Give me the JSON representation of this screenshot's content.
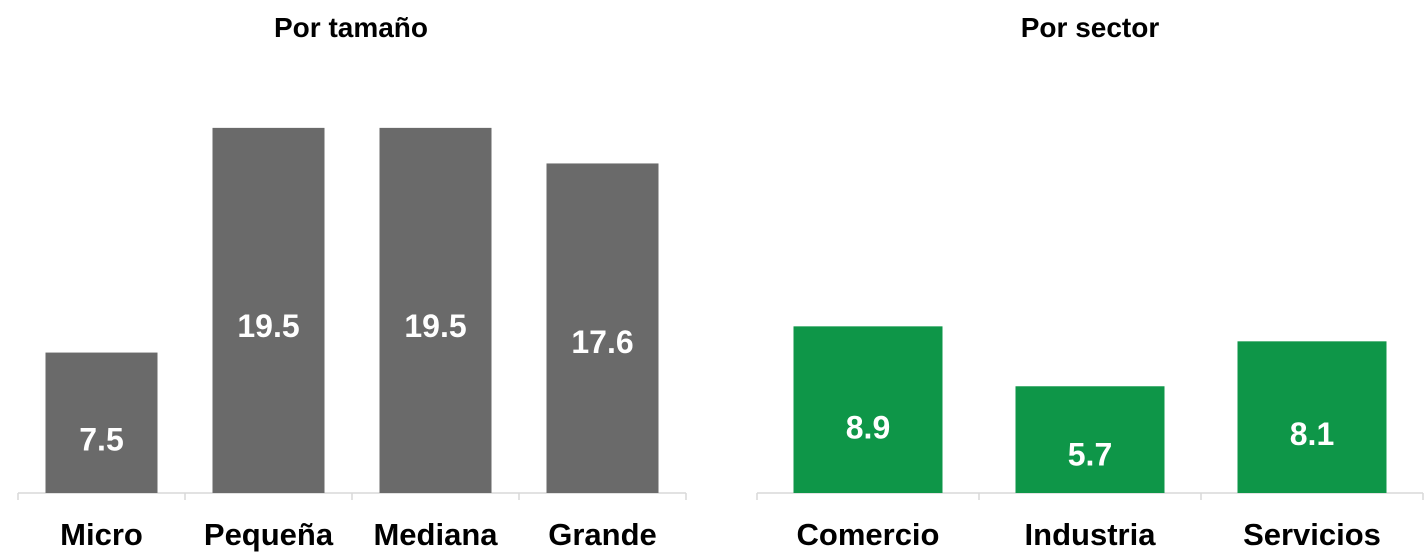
{
  "chart_data": [
    {
      "type": "bar",
      "title": "Por tamaño",
      "categories": [
        "Micro",
        "Pequeña",
        "Mediana",
        "Grande"
      ],
      "values": [
        7.5,
        19.5,
        19.5,
        17.6
      ],
      "color": "#6a6a6a",
      "ylim": [
        0,
        19.6
      ],
      "grid": false,
      "xlabel": "",
      "ylabel": ""
    },
    {
      "type": "bar",
      "title": "Por sector",
      "categories": [
        "Comercio",
        "Industria",
        "Servicios"
      ],
      "values": [
        8.9,
        5.7,
        8.1
      ],
      "color": "#0e9648",
      "ylim": [
        0,
        19.6
      ],
      "grid": false,
      "xlabel": "",
      "ylabel": ""
    }
  ]
}
